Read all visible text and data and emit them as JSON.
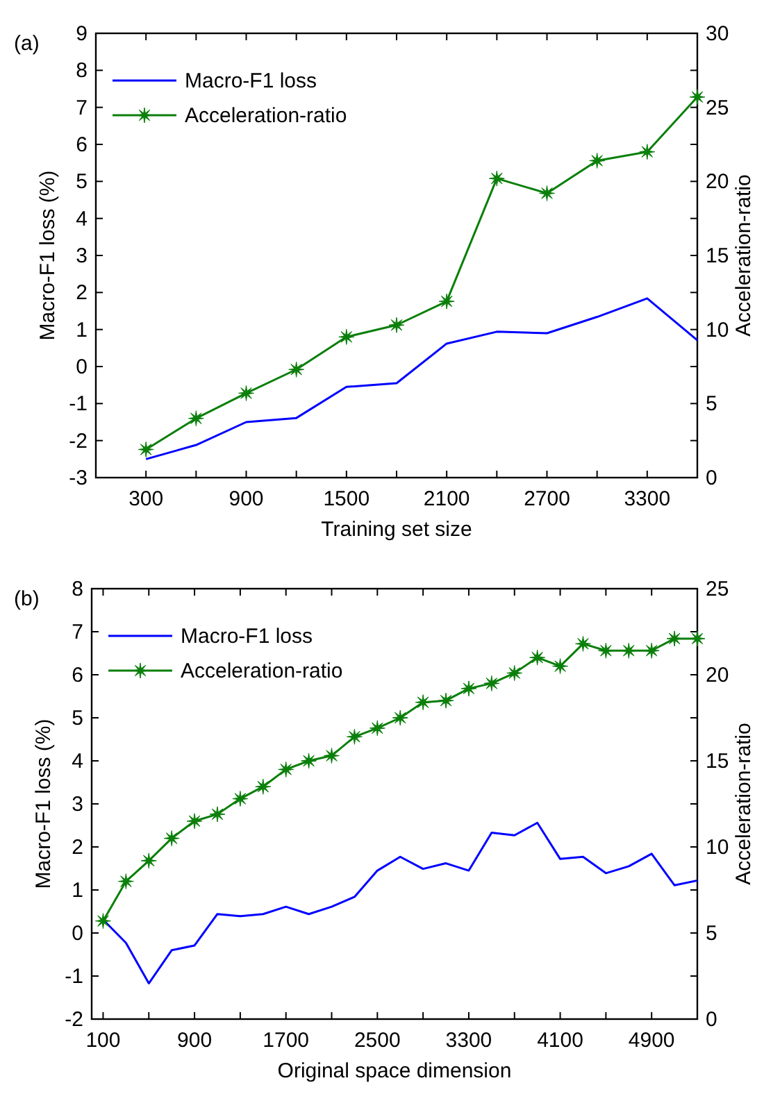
{
  "chart_data": [
    {
      "type": "line",
      "title": "(a)",
      "xlabel": "Training set size",
      "ylabel": "Macro-F1 loss (%)",
      "y2label": "Acceleration-ratio",
      "x": [
        300,
        600,
        900,
        1200,
        1500,
        1800,
        2100,
        2400,
        2700,
        3000,
        3300,
        3600
      ],
      "xlim": [
        0,
        3600
      ],
      "marker": "none",
      "xticks": [
        300,
        {
          "value": 600,
          "label": null
        },
        900,
        {
          "value": 1200,
          "label": null
        },
        1500,
        {
          "value": 1800,
          "label": null
        },
        2100,
        {
          "value": 2400,
          "label": null
        },
        2700,
        {
          "value": 3000,
          "label": null
        },
        3300
      ],
      "ylim": [
        -3,
        9
      ],
      "yticks": [
        -3,
        -2,
        -1,
        0,
        1,
        2,
        3,
        4,
        5,
        6,
        7,
        8,
        9
      ],
      "y2lim": [
        0,
        30
      ],
      "y2ticks": [
        0,
        {
          "value": 2.5,
          "label": null
        },
        5,
        {
          "value": 7.5,
          "label": null
        },
        10,
        {
          "value": 12.5,
          "label": null
        },
        15,
        {
          "value": 17.5,
          "label": null
        },
        20,
        {
          "value": 22.5,
          "label": null
        },
        25,
        {
          "value": 27.5,
          "label": null
        },
        30
      ],
      "legend": "top left",
      "line_style": "solid",
      "series": [
        {
          "name": "Macro-F1 loss",
          "color": "#0000ff",
          "values": [
            -2.5,
            -2.12,
            -1.5,
            -1.39,
            -0.55,
            -0.45,
            0.62,
            0.94,
            0.9,
            1.34,
            1.84,
            0.71
          ]
        },
        {
          "name": "Acceleration-ratio",
          "color": "#0a7f0a",
          "marker": "star",
          "axis": "y2",
          "values": [
            1.9,
            4.0,
            5.7,
            7.3,
            9.5,
            10.3,
            11.9,
            20.2,
            19.2,
            21.4,
            22.0,
            25.7
          ]
        }
      ]
    },
    {
      "type": "line",
      "title": "(b)",
      "xlabel": "Original space dimension",
      "ylabel": "Macro-F1 loss (%)",
      "y2label": "Acceleration-ratio",
      "x": [
        100,
        300,
        500,
        700,
        900,
        1100,
        1300,
        1500,
        1700,
        1900,
        2100,
        2300,
        2500,
        2700,
        2900,
        3100,
        3300,
        3500,
        3700,
        3900,
        4100,
        4300,
        4500,
        4700,
        4900,
        5100,
        5300
      ],
      "xlim": [
        0,
        5300
      ],
      "marker": "none",
      "xticks": [
        100,
        {
          "value": 500,
          "label": null
        },
        900,
        {
          "value": 1300,
          "label": null
        },
        1700,
        {
          "value": 2100,
          "label": null
        },
        2500,
        {
          "value": 2900,
          "label": null
        },
        3300,
        {
          "value": 3700,
          "label": null
        },
        4100,
        {
          "value": 4500,
          "label": null
        },
        4900
      ],
      "ylim": [
        -2,
        8
      ],
      "yticks": [
        -2,
        -1,
        0,
        1,
        2,
        3,
        4,
        5,
        6,
        7,
        8
      ],
      "y2lim": [
        0,
        25
      ],
      "y2ticks": [
        0,
        {
          "value": 2.5,
          "label": null
        },
        5,
        {
          "value": 7.5,
          "label": null
        },
        10,
        {
          "value": 12.5,
          "label": null
        },
        15,
        {
          "value": 17.5,
          "label": null
        },
        20,
        {
          "value": 22.5,
          "label": null
        },
        25
      ],
      "legend": "top left",
      "line_style": "solid",
      "series": [
        {
          "name": "Macro-F1 loss",
          "color": "#0000ff",
          "values": [
            0.31,
            -0.23,
            -1.17,
            -0.4,
            -0.29,
            0.44,
            0.39,
            0.44,
            0.61,
            0.44,
            0.61,
            0.84,
            1.45,
            1.77,
            1.49,
            1.62,
            1.45,
            2.33,
            2.27,
            2.56,
            1.72,
            1.77,
            1.39,
            1.55,
            1.84,
            1.11,
            1.22
          ]
        },
        {
          "name": "Acceleration-ratio",
          "color": "#0a7f0a",
          "marker": "star",
          "axis": "y2",
          "values": [
            5.7,
            8.0,
            9.2,
            10.5,
            11.5,
            11.9,
            12.8,
            13.5,
            14.5,
            15.0,
            15.3,
            16.4,
            16.9,
            17.5,
            18.4,
            18.5,
            19.2,
            19.5,
            20.1,
            21.0,
            20.5,
            21.8,
            21.4,
            21.4,
            21.4,
            22.1,
            22.1
          ]
        }
      ]
    }
  ]
}
